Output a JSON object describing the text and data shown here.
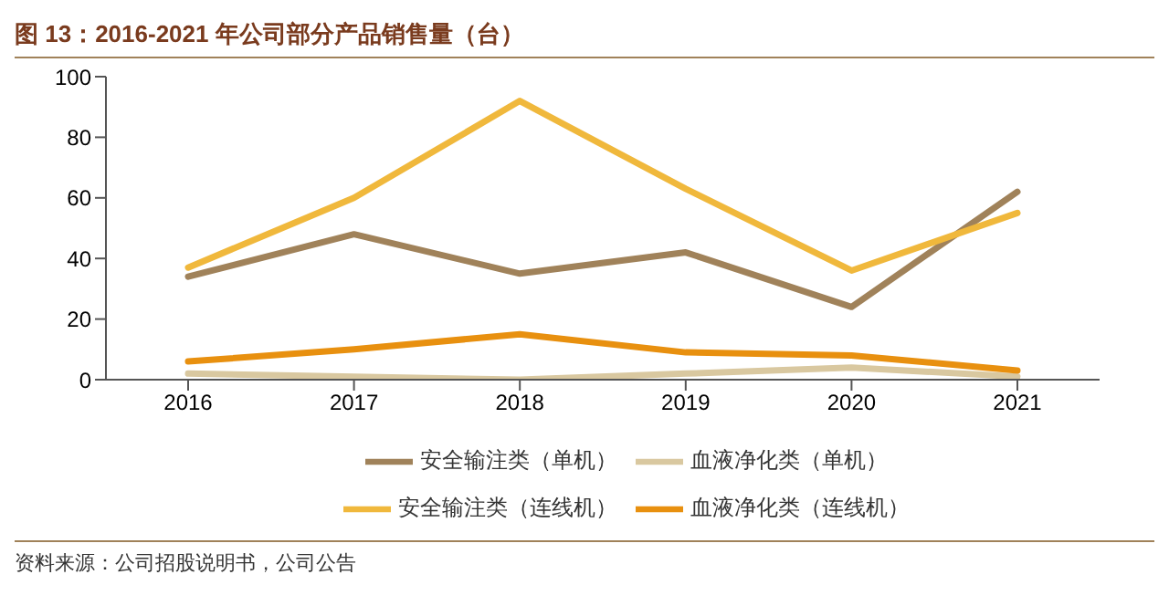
{
  "chart_data": {
    "type": "line",
    "title": "图 13：2016-2021 年公司部分产品销售量（台）",
    "categories": [
      "2016",
      "2017",
      "2018",
      "2019",
      "2020",
      "2021"
    ],
    "series": [
      {
        "name": "安全输注类（单机）",
        "color": "#a0825a",
        "values": [
          34,
          48,
          35,
          42,
          24,
          62
        ]
      },
      {
        "name": "血液净化类（单机）",
        "color": "#d9c8a0",
        "values": [
          2,
          1,
          0,
          2,
          4,
          1
        ]
      },
      {
        "name": "安全输注类（连线机）",
        "color": "#f0b83c",
        "values": [
          37,
          60,
          92,
          63,
          36,
          55
        ]
      },
      {
        "name": "血液净化类（连线机）",
        "color": "#e8900f",
        "values": [
          6,
          10,
          15,
          9,
          8,
          3
        ]
      }
    ],
    "ylim": [
      0,
      100
    ],
    "yticks": [
      0,
      20,
      40,
      60,
      80,
      100
    ],
    "grid": false,
    "legend": "bottom",
    "marker": "none",
    "line_style": "solid",
    "annotations": [
      "资料来源：公司招股说明书，公司公告"
    ]
  }
}
